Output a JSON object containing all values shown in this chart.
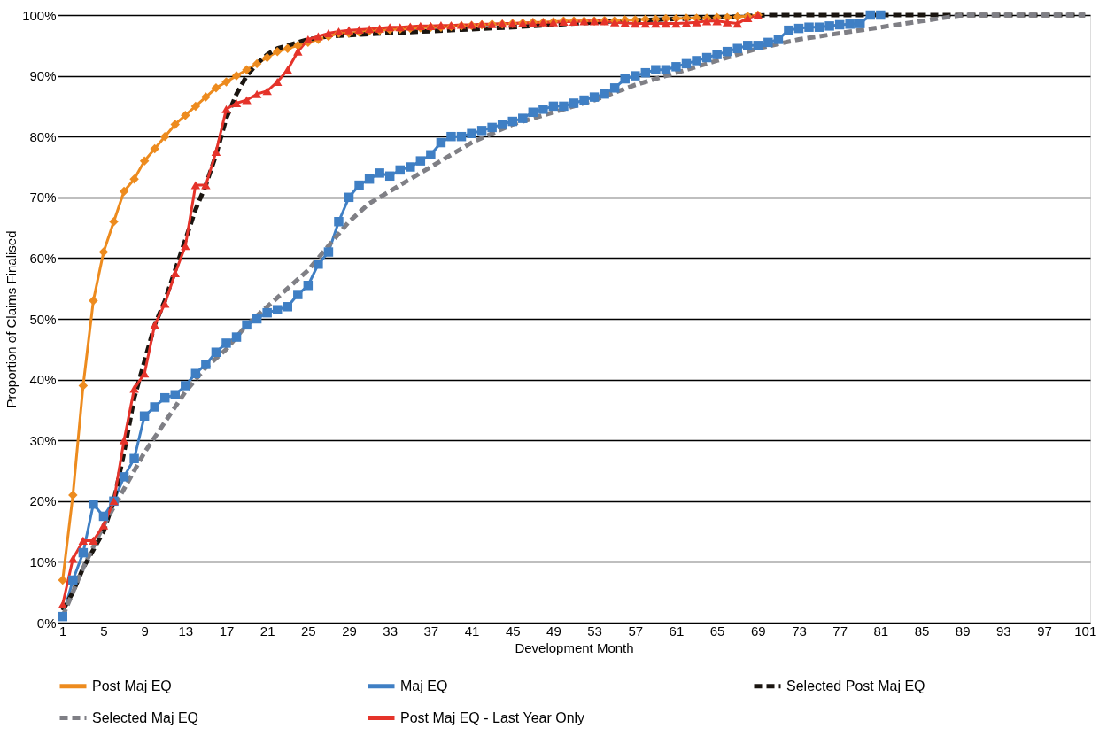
{
  "chart_data": {
    "type": "line",
    "xlabel": "Development  Month",
    "ylabel": "Proportion of Claims Finalised",
    "xlim": [
      0.5,
      101.5
    ],
    "xticks": [
      1,
      5,
      9,
      13,
      17,
      21,
      25,
      29,
      33,
      37,
      41,
      45,
      49,
      53,
      57,
      61,
      65,
      69,
      73,
      77,
      81,
      85,
      89,
      93,
      97,
      101
    ],
    "ylim": [
      0,
      100
    ],
    "yticks": [
      {
        "value": 0,
        "label": "0%"
      },
      {
        "value": 10,
        "label": "10%"
      },
      {
        "value": 20,
        "label": "20%"
      },
      {
        "value": 30,
        "label": "30%"
      },
      {
        "value": 40,
        "label": "40%"
      },
      {
        "value": 50,
        "label": "50%"
      },
      {
        "value": 60,
        "label": "60%"
      },
      {
        "value": 70,
        "label": "70%"
      },
      {
        "value": 80,
        "label": "80%"
      },
      {
        "value": 90,
        "label": "90%"
      },
      {
        "value": 100,
        "label": "100%"
      }
    ],
    "grid": "y",
    "legend": "bottom",
    "series": [
      {
        "name": "Post Maj EQ",
        "color": "#ed8b1e",
        "marker": "diamond",
        "line_style": "solid",
        "x": [
          1,
          2,
          3,
          4,
          5,
          6,
          7,
          8,
          9,
          10,
          11,
          12,
          13,
          14,
          15,
          16,
          17,
          18,
          19,
          20,
          21,
          22,
          23,
          24,
          25,
          26,
          27,
          28,
          29,
          30,
          31,
          32,
          33,
          34,
          35,
          36,
          37,
          38,
          39,
          40,
          41,
          42,
          43,
          44,
          45,
          46,
          47,
          48,
          49,
          50,
          51,
          52,
          53,
          54,
          55,
          56,
          57,
          58,
          59,
          60,
          61,
          62,
          63,
          64,
          65,
          66,
          67,
          68,
          69
        ],
        "values": [
          7,
          21,
          39,
          53,
          61,
          66,
          71,
          73,
          76,
          78,
          80,
          82,
          83.5,
          85,
          86.5,
          88,
          89,
          90,
          91,
          92,
          93,
          94,
          94.5,
          95,
          95.5,
          96,
          96.5,
          97,
          97,
          97.2,
          97.4,
          97.5,
          97.6,
          97.7,
          97.8,
          97.9,
          98,
          98,
          98.1,
          98.2,
          98.3,
          98.4,
          98.5,
          98.5,
          98.6,
          98.7,
          98.8,
          98.8,
          98.9,
          99,
          99,
          99,
          99,
          99.1,
          99.1,
          99.2,
          99.2,
          99.3,
          99.3,
          99.4,
          99.4,
          99.5,
          99.5,
          99.5,
          99.6,
          99.6,
          99.7,
          99.8,
          100
        ]
      },
      {
        "name": "Maj EQ",
        "color": "#3f7fc4",
        "marker": "square",
        "line_style": "solid",
        "x": [
          1,
          2,
          3,
          4,
          5,
          6,
          7,
          8,
          9,
          10,
          11,
          12,
          13,
          14,
          15,
          16,
          17,
          18,
          19,
          20,
          21,
          22,
          23,
          24,
          25,
          26,
          27,
          28,
          29,
          30,
          31,
          32,
          33,
          34,
          35,
          36,
          37,
          38,
          39,
          40,
          41,
          42,
          43,
          44,
          45,
          46,
          47,
          48,
          49,
          50,
          51,
          52,
          53,
          54,
          55,
          56,
          57,
          58,
          59,
          60,
          61,
          62,
          63,
          64,
          65,
          66,
          67,
          68,
          69,
          70,
          71,
          72,
          73,
          74,
          75,
          76,
          77,
          78,
          79,
          80,
          81
        ],
        "values": [
          1,
          7,
          11.5,
          19.5,
          17.5,
          20,
          24,
          27,
          34,
          35.5,
          37,
          37.5,
          39,
          41,
          42.5,
          44.5,
          46,
          47,
          49,
          50,
          51,
          51.5,
          52,
          54,
          55.5,
          59,
          61,
          66,
          70,
          72,
          73,
          74,
          73.5,
          74.5,
          75,
          76,
          77,
          79,
          80,
          80,
          80.5,
          81,
          81.5,
          82,
          82.5,
          83,
          84,
          84.5,
          85,
          85,
          85.5,
          86,
          86.5,
          87,
          88,
          89.5,
          90,
          90.5,
          91,
          91,
          91.5,
          92,
          92.5,
          93,
          93.5,
          94,
          94.5,
          95,
          95,
          95.5,
          96,
          97.5,
          97.8,
          98,
          98,
          98.2,
          98.4,
          98.5,
          98.6,
          100,
          100
        ]
      },
      {
        "name": "Selected Post Maj EQ",
        "color": "#1a1510",
        "marker": "none",
        "line_style": "dashed",
        "x": [
          1,
          2,
          3,
          4,
          5,
          6,
          7,
          8,
          9,
          10,
          11,
          12,
          13,
          14,
          15,
          16,
          17,
          18,
          19,
          20,
          21,
          22,
          23,
          24,
          25,
          27,
          30,
          35,
          40,
          45,
          50,
          55,
          60,
          65,
          70,
          101
        ],
        "values": [
          2,
          5,
          9,
          12,
          15,
          20,
          28,
          37,
          43,
          49,
          53,
          58,
          63,
          68,
          72,
          77,
          83,
          87,
          90,
          92,
          93.5,
          94.5,
          95,
          95.5,
          96,
          96.5,
          96.8,
          97.2,
          97.6,
          98,
          98.5,
          99,
          99.3,
          99.6,
          100,
          100
        ]
      },
      {
        "name": "Selected Maj EQ",
        "color": "#7f7f85",
        "marker": "none",
        "line_style": "dashed",
        "x": [
          1,
          3,
          5,
          7,
          9,
          11,
          13,
          15,
          17,
          19,
          21,
          23,
          25,
          27,
          29,
          31,
          33,
          35,
          37,
          41,
          45,
          49,
          53,
          57,
          61,
          65,
          69,
          73,
          77,
          81,
          85,
          89,
          101
        ],
        "values": [
          1,
          9,
          16,
          22,
          28,
          33,
          38,
          42,
          45,
          49,
          52,
          55,
          58,
          62,
          66,
          69,
          71,
          73,
          75,
          79,
          82,
          84,
          86,
          88.5,
          90.5,
          92.5,
          94.5,
          96,
          97,
          98,
          99,
          100,
          100
        ]
      },
      {
        "name": "Post Maj EQ - Last Year Only",
        "color": "#e5332a",
        "marker": "triangle",
        "line_style": "solid",
        "x": [
          1,
          2,
          3,
          4,
          5,
          6,
          7,
          8,
          9,
          10,
          11,
          12,
          13,
          14,
          15,
          16,
          17,
          18,
          19,
          20,
          21,
          22,
          23,
          24,
          25,
          26,
          27,
          28,
          29,
          30,
          31,
          32,
          33,
          34,
          35,
          36,
          37,
          38,
          39,
          40,
          41,
          42,
          43,
          44,
          45,
          46,
          47,
          48,
          49,
          50,
          51,
          52,
          53,
          54,
          55,
          56,
          57,
          58,
          59,
          60,
          61,
          62,
          63,
          64,
          65,
          66,
          67,
          68,
          69
        ],
        "values": [
          3,
          10.5,
          13.5,
          13.5,
          16,
          20,
          30,
          38.5,
          41,
          49,
          52.5,
          57.5,
          62,
          72,
          72,
          77.5,
          84.5,
          85.5,
          86,
          87,
          87.5,
          89,
          91,
          94,
          96,
          96.5,
          97,
          97.3,
          97.5,
          97.6,
          97.7,
          97.8,
          98,
          98,
          98.1,
          98.2,
          98.2,
          98.3,
          98.3,
          98.4,
          98.4,
          98.5,
          98.5,
          98.6,
          98.6,
          98.7,
          98.7,
          98.8,
          98.8,
          98.9,
          98.9,
          99,
          99,
          99,
          98.8,
          98.7,
          98.6,
          98.6,
          98.6,
          98.6,
          98.6,
          98.7,
          98.8,
          99,
          99,
          98.8,
          98.6,
          99.5,
          100
        ]
      }
    ]
  }
}
